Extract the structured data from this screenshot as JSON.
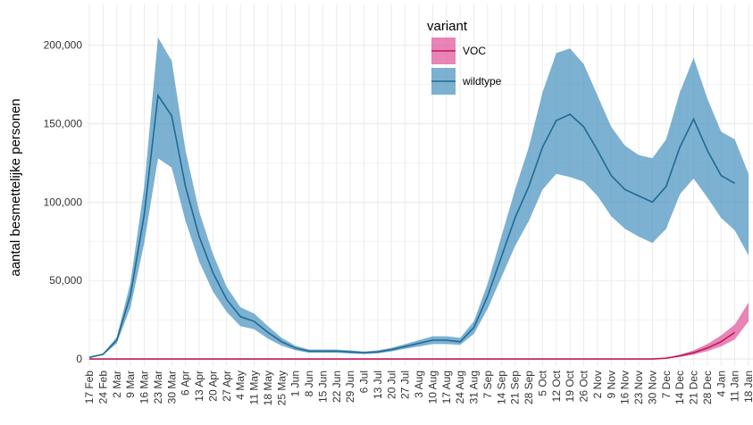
{
  "chart_data": {
    "type": "line-band",
    "y_label": "aantal besmettelijke personen",
    "legend_title": "variant",
    "categories": [
      "17 Feb",
      "24 Feb",
      "2 Mar",
      "9 Mar",
      "16 Mar",
      "23 Mar",
      "30 Mar",
      "6 Apr",
      "13 Apr",
      "20 Apr",
      "27 Apr",
      "4 May",
      "11 May",
      "18 May",
      "25 May",
      "1 Jun",
      "8 Jun",
      "15 Jun",
      "22 Jun",
      "29 Jun",
      "6 Jul",
      "13 Jul",
      "20 Jul",
      "27 Jul",
      "3 Aug",
      "10 Aug",
      "17 Aug",
      "24 Aug",
      "31 Aug",
      "7 Sep",
      "14 Sep",
      "21 Sep",
      "28 Sep",
      "5 Oct",
      "12 Oct",
      "19 Oct",
      "26 Oct",
      "2 Nov",
      "9 Nov",
      "16 Nov",
      "23 Nov",
      "30 Nov",
      "7 Dec",
      "14 Dec",
      "21 Dec",
      "28 Dec",
      "4 Jan",
      "11 Jan",
      "18 Jan"
    ],
    "series": [
      {
        "name": "VOC",
        "color": "#c2185b",
        "fill": "#e0559a",
        "values": [
          0,
          0,
          0,
          0,
          0,
          0,
          0,
          0,
          0,
          0,
          0,
          0,
          0,
          0,
          0,
          0,
          0,
          0,
          0,
          0,
          0,
          0,
          0,
          0,
          0,
          0,
          0,
          0,
          0,
          0,
          0,
          0,
          0,
          0,
          0,
          0,
          0,
          0,
          0,
          0,
          0,
          0,
          500,
          2000,
          4000,
          7000,
          11000,
          17000,
          null
        ],
        "lower": [
          0,
          0,
          0,
          0,
          0,
          0,
          0,
          0,
          0,
          0,
          0,
          0,
          0,
          0,
          0,
          0,
          0,
          0,
          0,
          0,
          0,
          0,
          0,
          0,
          0,
          0,
          0,
          0,
          0,
          0,
          0,
          0,
          0,
          0,
          0,
          0,
          0,
          0,
          0,
          0,
          0,
          0,
          300,
          1400,
          2800,
          5000,
          8000,
          12500,
          24000
        ],
        "upper": [
          0,
          0,
          0,
          0,
          0,
          0,
          0,
          0,
          0,
          0,
          0,
          0,
          0,
          0,
          0,
          0,
          0,
          0,
          0,
          0,
          0,
          0,
          0,
          0,
          0,
          0,
          0,
          0,
          0,
          0,
          0,
          0,
          0,
          0,
          0,
          0,
          0,
          0,
          0,
          0,
          0,
          0,
          800,
          2800,
          5500,
          9500,
          15000,
          22000,
          36000
        ]
      },
      {
        "name": "wildtype",
        "color": "#1f6a94",
        "fill": "#4a93c0",
        "values": [
          1000,
          3000,
          12000,
          41000,
          92000,
          168000,
          155000,
          110000,
          78000,
          55000,
          38000,
          27000,
          24000,
          17000,
          11000,
          7000,
          5000,
          5000,
          5000,
          4500,
          4000,
          4500,
          6000,
          8000,
          10000,
          12000,
          12000,
          11000,
          20000,
          40000,
          65000,
          90000,
          110000,
          135000,
          152000,
          156000,
          148000,
          133000,
          117000,
          108000,
          104000,
          100000,
          110000,
          135000,
          153000,
          133000,
          117000,
          112000,
          null
        ],
        "lower": [
          800,
          2500,
          10000,
          33000,
          74000,
          128000,
          122000,
          88000,
          62000,
          43000,
          30000,
          21000,
          19000,
          13000,
          8500,
          5500,
          4000,
          4000,
          4000,
          3500,
          3200,
          3600,
          4800,
          6500,
          8000,
          9500,
          9500,
          9000,
          16000,
          32000,
          52000,
          72000,
          88000,
          108000,
          118000,
          116000,
          113000,
          104000,
          91000,
          83000,
          78000,
          74000,
          83000,
          105000,
          115000,
          103000,
          90000,
          82000,
          66000
        ],
        "upper": [
          1200,
          3500,
          14000,
          49000,
          110000,
          205000,
          190000,
          133000,
          94000,
          67000,
          46000,
          33000,
          29000,
          21000,
          13500,
          8500,
          6000,
          6000,
          6000,
          5500,
          4800,
          5500,
          7200,
          9500,
          12000,
          14500,
          14500,
          13500,
          24000,
          48000,
          78000,
          108000,
          135000,
          170000,
          195000,
          198000,
          188000,
          168000,
          148000,
          136000,
          130000,
          128000,
          140000,
          170000,
          192000,
          166000,
          145000,
          140000,
          118000
        ]
      }
    ],
    "ylim": [
      -4500,
      226000
    ],
    "yticks": [
      0,
      {
        "value": 50000,
        "label": "50,000"
      },
      {
        "value": 100000,
        "label": "100,000"
      },
      {
        "value": 150000,
        "label": "150,000"
      },
      {
        "value": 200000,
        "label": "200,000"
      }
    ],
    "grid": true
  }
}
